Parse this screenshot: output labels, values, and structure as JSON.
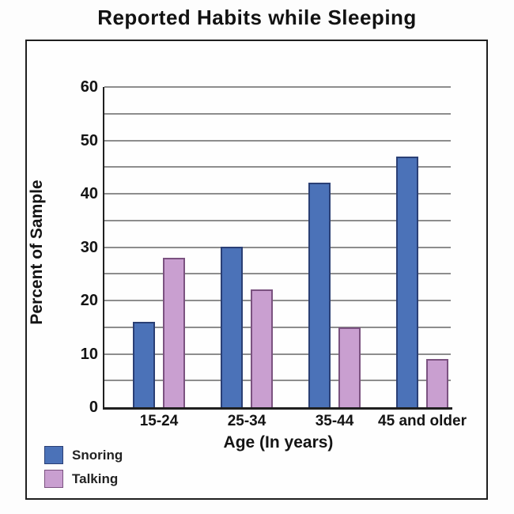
{
  "title": "Reported Habits while Sleeping",
  "chart_data": {
    "type": "bar",
    "title": "Reported Habits while Sleeping",
    "xlabel": "Age (In years)",
    "ylabel": "Percent of Sample",
    "categories": [
      "15-24",
      "25-34",
      "35-44",
      "45 and older"
    ],
    "series": [
      {
        "name": "Snoring",
        "color": "#4b72b8",
        "border_color": "#2a3f75",
        "values": [
          16,
          30,
          42,
          47
        ]
      },
      {
        "name": "Talking",
        "color": "#c99fd0",
        "border_color": "#7b5280",
        "values": [
          28,
          22,
          15,
          9
        ]
      }
    ],
    "ylim": [
      0,
      60
    ],
    "yticks": [
      0,
      10,
      20,
      30,
      40,
      50,
      60
    ],
    "grid_step": 5,
    "grid": true,
    "grid_color": "#8d8d8d",
    "axis_color": "#1f1f1f",
    "legend_position": "bottom-left"
  }
}
